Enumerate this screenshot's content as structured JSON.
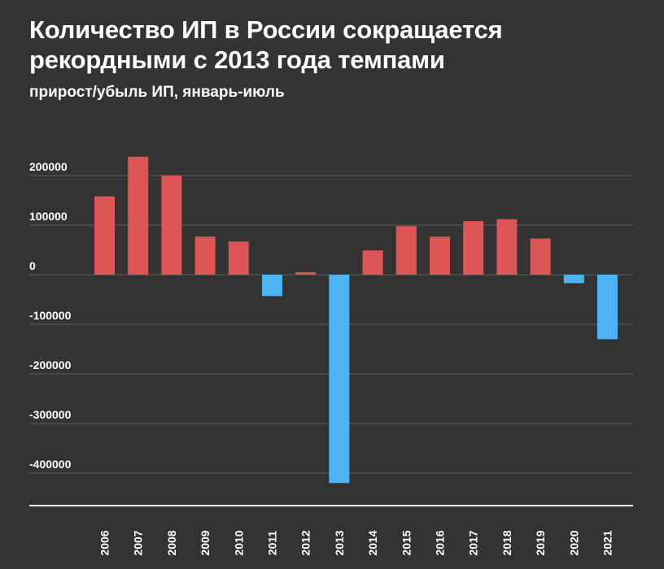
{
  "title": "Количество ИП в России сокращается рекордными с 2013 года темпами",
  "subtitle": "прирост/убыль ИП, январь-июль",
  "colors": {
    "background": "#333333",
    "positive": "#de5555",
    "negative": "#4db3f5",
    "grid": "#5f5f5f",
    "baseline": "#ffffff"
  },
  "chart_data": {
    "type": "bar",
    "title": "Количество ИП в России сокращается рекордными с 2013 года темпами",
    "subtitle": "прирост/убыль ИП, январь-июль",
    "categories": [
      "2006",
      "2007",
      "2008",
      "2009",
      "2010",
      "2011",
      "2012",
      "2013",
      "2014",
      "2015",
      "2016",
      "2017",
      "2018",
      "2019",
      "2020",
      "2021"
    ],
    "values": [
      158000,
      238000,
      200000,
      77000,
      67000,
      -43000,
      5000,
      -420000,
      49000,
      98000,
      77000,
      108000,
      112000,
      73000,
      -17000,
      -130000
    ],
    "yticks": [
      200000,
      100000,
      0,
      -100000,
      -200000,
      -300000,
      -400000
    ],
    "ytick_labels": [
      "200000",
      "100000",
      "0",
      "-100000",
      "-200000",
      "-300000",
      "-400000"
    ],
    "ylim": [
      -460000,
      260000
    ],
    "grid": true,
    "legend": "none",
    "xlabel": "",
    "ylabel": ""
  }
}
